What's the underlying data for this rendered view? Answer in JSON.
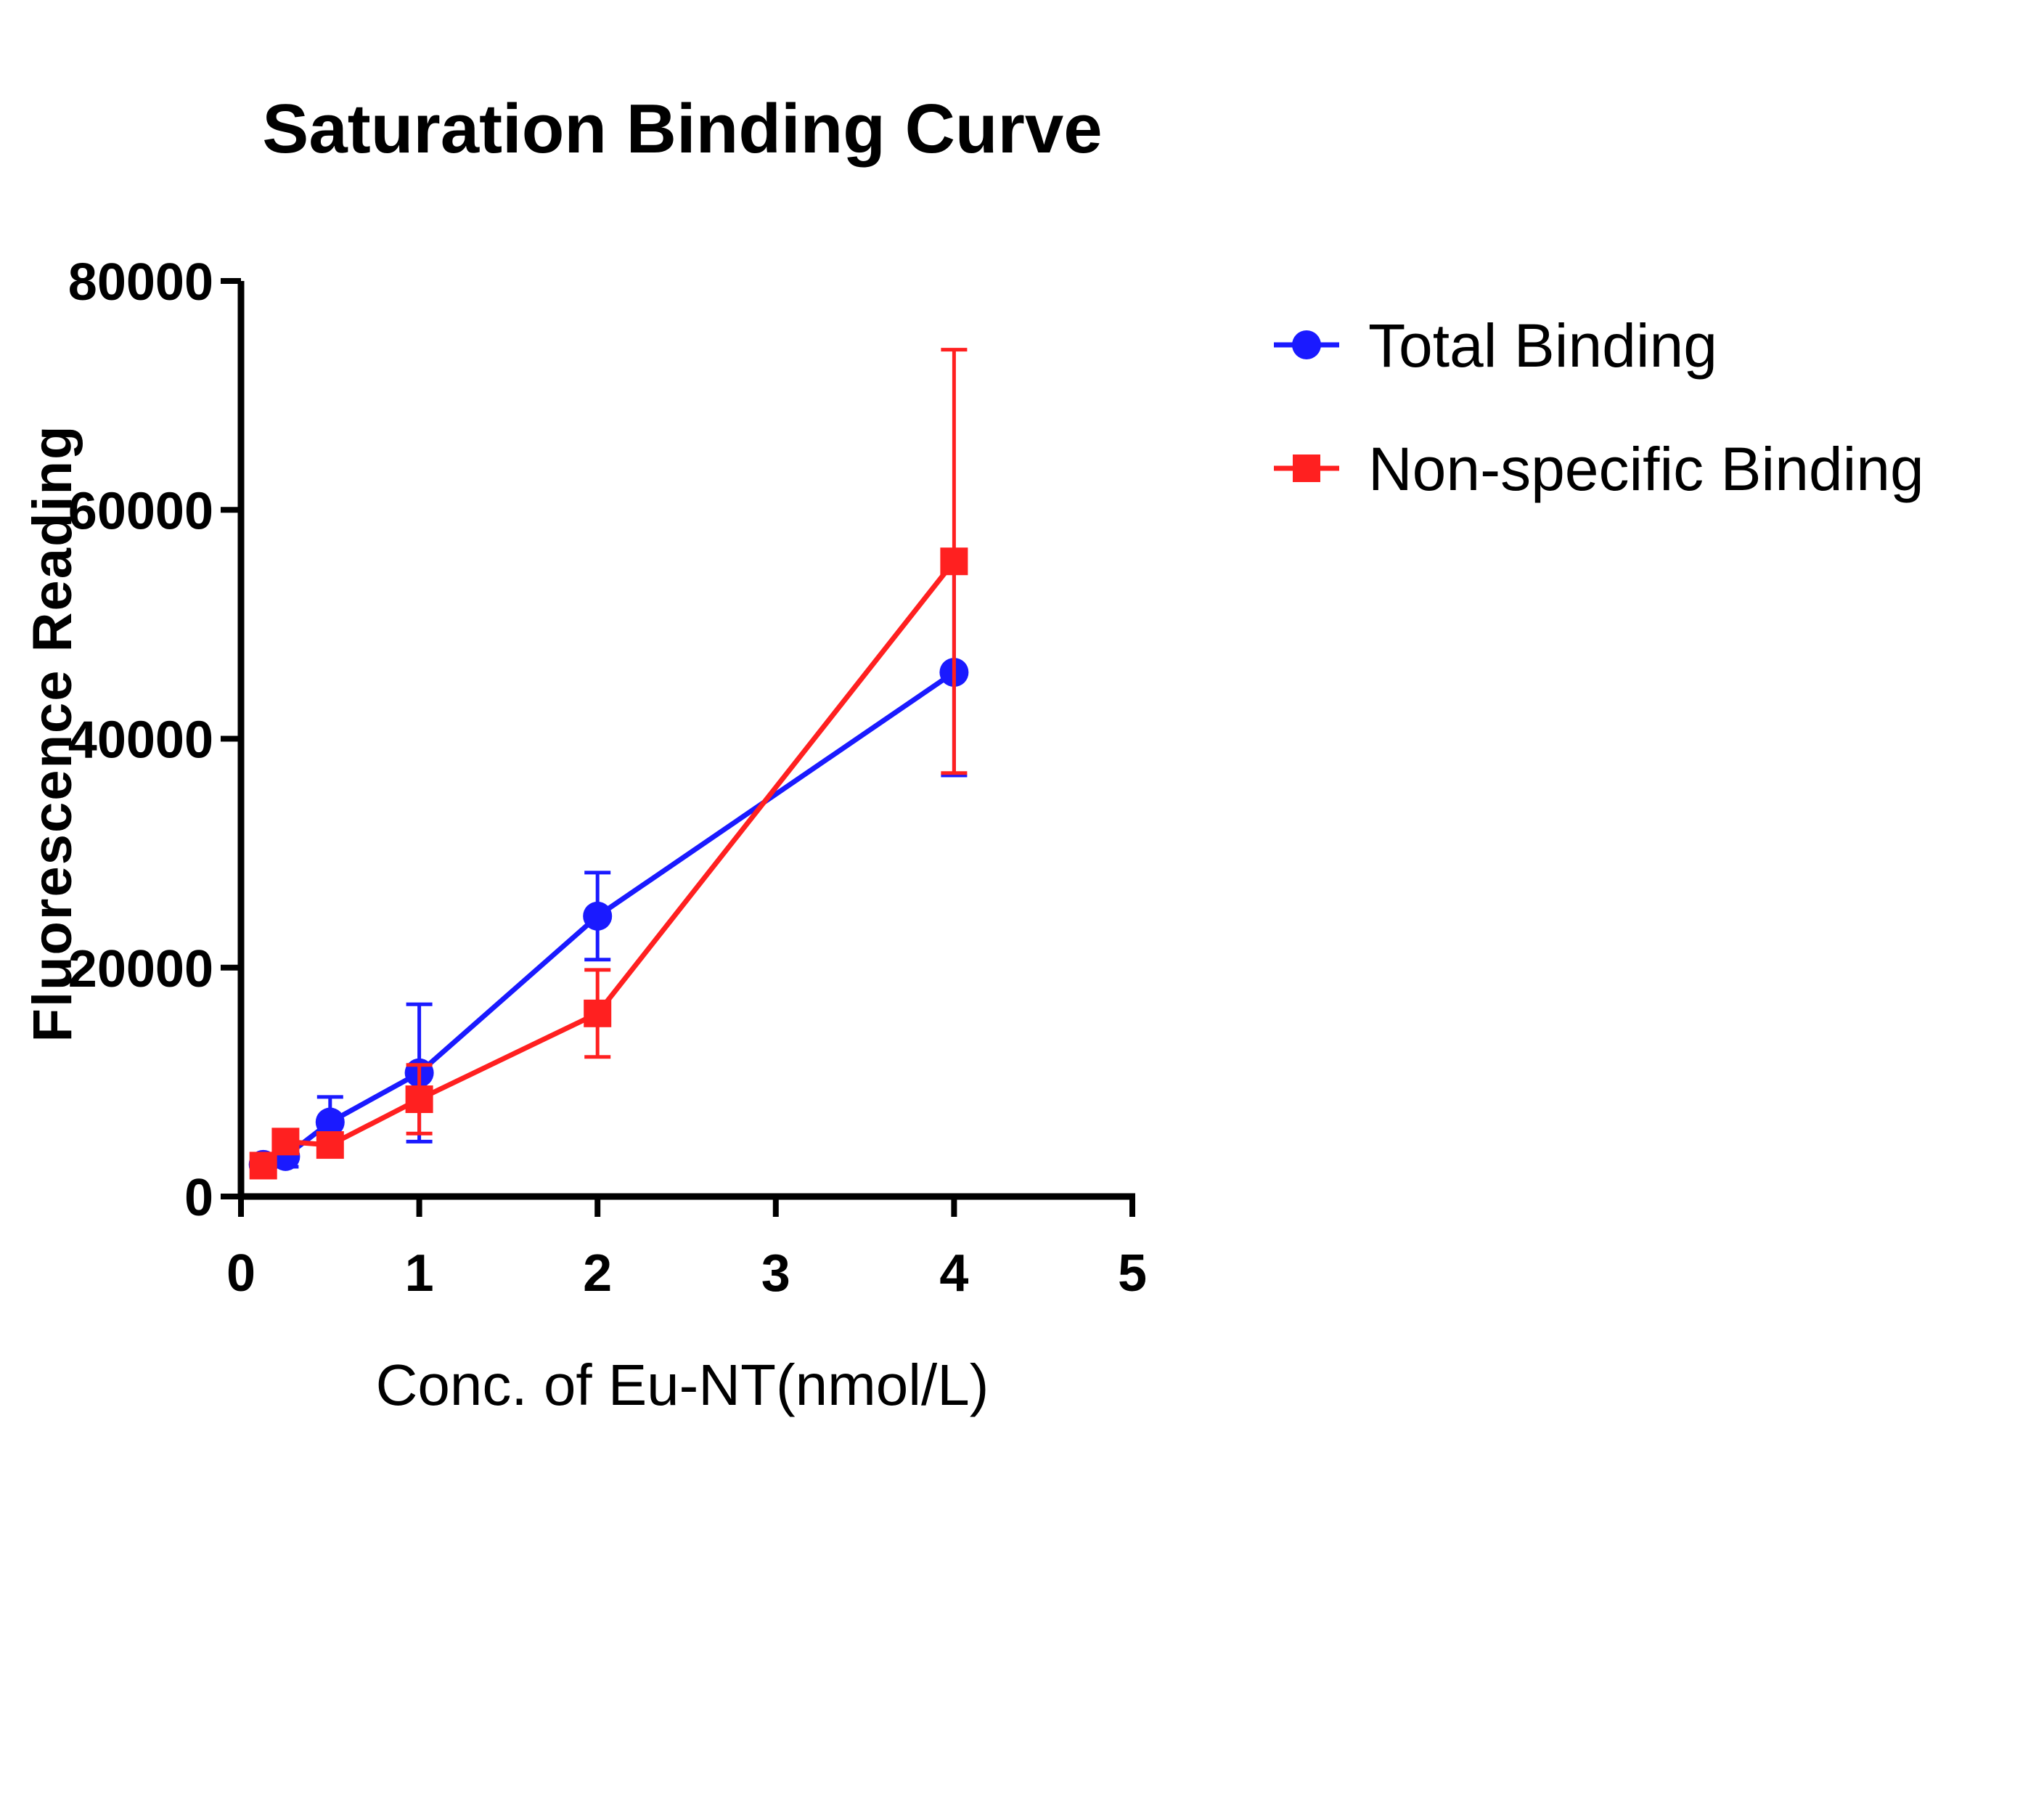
{
  "chart_data": {
    "type": "line",
    "title": "Saturation Binding Curve",
    "xlabel": "Conc. of Eu-NT(nmol/L)",
    "ylabel": "Fluorescence Reading",
    "xlim": [
      0,
      5
    ],
    "ylim": [
      0,
      80000
    ],
    "x_ticks": [
      0,
      1,
      2,
      3,
      4,
      5
    ],
    "y_ticks": [
      0,
      20000,
      40000,
      60000,
      80000
    ],
    "x_tick_labels": [
      "0",
      "1",
      "2",
      "3",
      "4",
      "5"
    ],
    "y_tick_labels": [
      "0",
      "20000",
      "40000",
      "60000",
      "80000"
    ],
    "grid": false,
    "legend_position": "right",
    "series": [
      {
        "name": "Total Binding",
        "color": "#1a1aff",
        "marker": "circle",
        "x": [
          0.125,
          0.25,
          0.5,
          1,
          2,
          4
        ],
        "y": [
          2800,
          3500,
          6500,
          10800,
          24500,
          45800
        ],
        "error": [
          800,
          900,
          2200,
          6000,
          3800,
          9000
        ]
      },
      {
        "name": "Non-specific Binding",
        "color": "#ff2020",
        "marker": "square",
        "x": [
          0.125,
          0.25,
          0.5,
          1,
          2,
          4
        ],
        "y": [
          2700,
          4800,
          4500,
          8500,
          16000,
          55500
        ],
        "error": [
          800,
          900,
          800,
          3000,
          3800,
          18500
        ]
      }
    ]
  }
}
